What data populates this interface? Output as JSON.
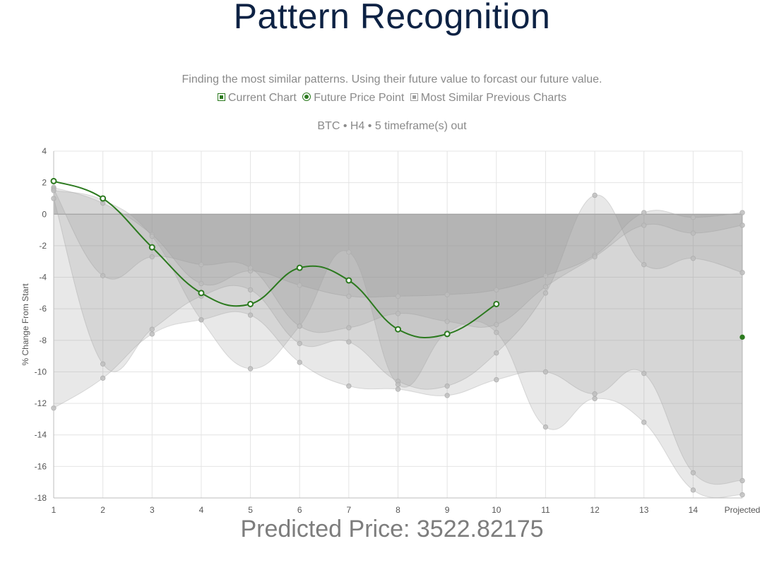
{
  "page": {
    "title": "Pattern Recognition",
    "subtitle": "Finding the most similar patterns. Using their future value to forcast our future value.",
    "legend": [
      {
        "label": "Current Chart",
        "marker": "square",
        "color": "#2c7a1f"
      },
      {
        "label": "Future Price Point",
        "marker": "circle",
        "color": "#2c7a1f"
      },
      {
        "label": "Most Similar Previous Charts",
        "marker": "square",
        "color": "#9e9e9e"
      }
    ],
    "chart_caption": "BTC • H4 • 5 timeframe(s) out",
    "predicted_price": "Predicted Price: 3522.82175"
  },
  "chart_data": {
    "type": "area",
    "title": "BTC • H4 • 5 timeframe(s) out",
    "xlabel": "",
    "ylabel": "% Change From Start",
    "categories": [
      "1",
      "2",
      "3",
      "4",
      "5",
      "6",
      "7",
      "8",
      "9",
      "10",
      "11",
      "12",
      "13",
      "14",
      "Projected"
    ],
    "ylim": [
      -18,
      4
    ],
    "yticks": [
      4,
      2,
      0,
      -2,
      -4,
      -6,
      -8,
      -10,
      -12,
      -14,
      -16,
      -18
    ],
    "grid": true,
    "current_chart": {
      "name": "Current Chart",
      "color": "#2c7a1f",
      "values": [
        2.1,
        1.0,
        -2.1,
        -5.0,
        -5.7,
        -3.4,
        -4.2,
        -7.3,
        -7.6,
        -5.7
      ]
    },
    "future_price_point": {
      "name": "Future Price Point",
      "color": "#2c7a1f",
      "category": "Projected",
      "value": -7.8
    },
    "similar_series": [
      {
        "name": "Most Similar Previous Charts",
        "color": "#9e9e9e",
        "values": [
          1.7,
          0.7,
          -1.3,
          -4.4,
          -3.6,
          -4.5,
          -5.2,
          -5.2,
          -5.1,
          -4.8,
          -3.9,
          -2.6,
          0.1,
          -0.2,
          0.1
        ]
      },
      {
        "name": "Most Similar Previous Charts",
        "color": "#9e9e9e",
        "values": [
          1.6,
          -3.9,
          -2.7,
          -3.2,
          -3.4,
          -7.1,
          -7.2,
          -6.3,
          -6.8,
          -7.0,
          -4.6,
          -2.7,
          -0.7,
          -1.2,
          -0.7
        ]
      },
      {
        "name": "Most Similar Previous Charts",
        "color": "#9e9e9e",
        "values": [
          1.0,
          -9.5,
          -7.3,
          -5.2,
          -4.8,
          -8.2,
          -8.1,
          -10.6,
          -10.9,
          -8.8,
          -5.0,
          1.2,
          -3.2,
          -2.8,
          -3.7
        ]
      },
      {
        "name": "Most Similar Previous Charts",
        "color": "#9e9e9e",
        "values": [
          -12.3,
          -10.4,
          -7.6,
          -6.7,
          -6.4,
          -9.4,
          -10.9,
          -11.1,
          -11.5,
          -10.5,
          -10.0,
          -11.4,
          -10.1,
          -16.4,
          -16.9
        ]
      },
      {
        "name": "Most Similar Previous Charts",
        "color": "#9e9e9e",
        "values": [
          1.5,
          0.9,
          -1.4,
          -6.7,
          -9.8,
          -7.1,
          -2.4,
          -10.8,
          -7.5,
          -7.5,
          -13.5,
          -11.7,
          -13.2,
          -17.5,
          -17.8
        ]
      }
    ]
  }
}
